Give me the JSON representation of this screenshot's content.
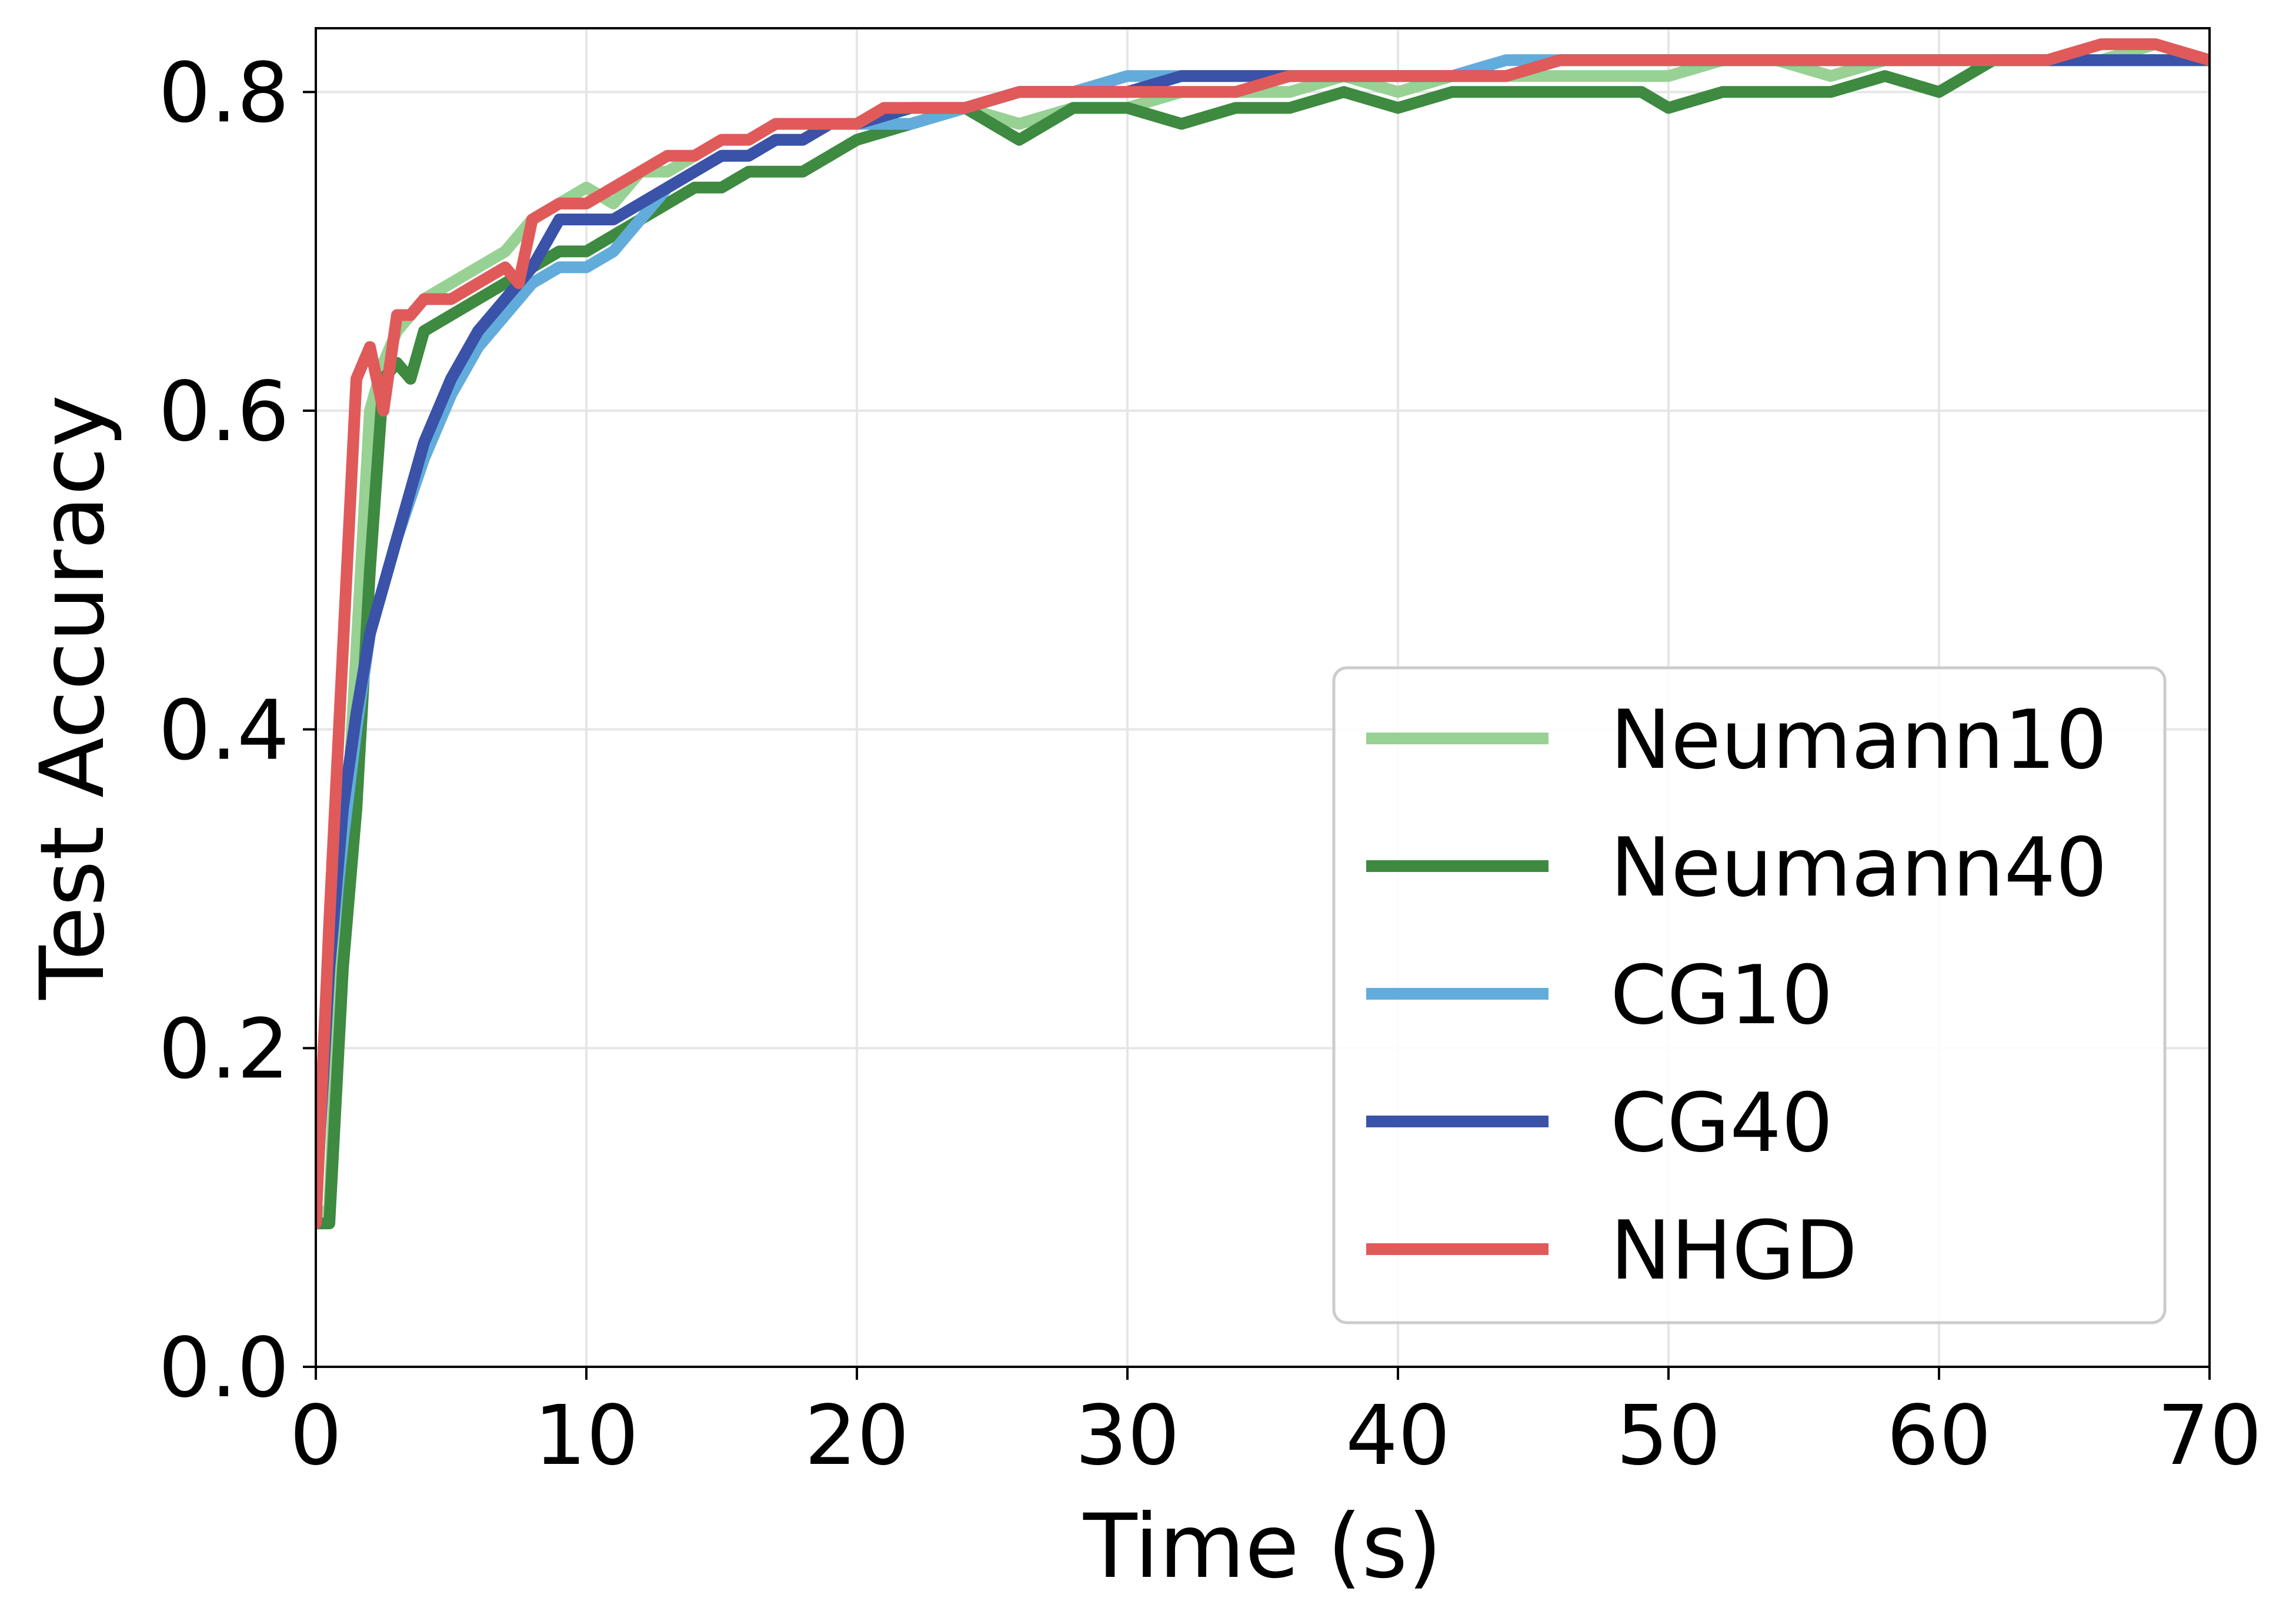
{
  "chart_data": {
    "type": "line",
    "xlabel": "Time (s)",
    "ylabel": "Test Accuracy",
    "xlim": [
      0,
      70
    ],
    "ylim": [
      0,
      0.84
    ],
    "xticks": [
      0,
      10,
      20,
      30,
      40,
      50,
      60,
      70
    ],
    "xtick_labels": [
      "0",
      "10",
      "20",
      "30",
      "40",
      "50",
      "60",
      "70"
    ],
    "yticks": [
      0,
      0.2,
      0.4,
      0.6,
      0.8
    ],
    "ytick_labels": [
      "0.0",
      "0.2",
      "0.4",
      "0.6",
      "0.8"
    ],
    "grid": true,
    "legend_position": "lower-right",
    "series": [
      {
        "name": "Neumann10",
        "color": "#98d194",
        "x": [
          0,
          0.5,
          1,
          1.5,
          2,
          2.5,
          3,
          4,
          5,
          6,
          7,
          8,
          9,
          10,
          11,
          12,
          13,
          14,
          15,
          16,
          17,
          18,
          19,
          20,
          22,
          24,
          26,
          28,
          30,
          32,
          34,
          36,
          38,
          40,
          42,
          44,
          46,
          48,
          50,
          52,
          54,
          56,
          58,
          60,
          62,
          64,
          66,
          68,
          70
        ],
        "y": [
          0.09,
          0.1,
          0.3,
          0.45,
          0.6,
          0.63,
          0.65,
          0.67,
          0.68,
          0.69,
          0.7,
          0.72,
          0.73,
          0.74,
          0.73,
          0.75,
          0.75,
          0.76,
          0.77,
          0.77,
          0.78,
          0.78,
          0.78,
          0.78,
          0.78,
          0.79,
          0.78,
          0.79,
          0.79,
          0.8,
          0.8,
          0.8,
          0.81,
          0.8,
          0.81,
          0.81,
          0.81,
          0.81,
          0.81,
          0.82,
          0.82,
          0.81,
          0.82,
          0.82,
          0.82,
          0.82,
          0.82,
          0.83,
          0.82
        ]
      },
      {
        "name": "Neumann40",
        "color": "#3d8a40",
        "x": [
          0,
          0.5,
          1,
          1.5,
          2,
          2.5,
          3,
          3.5,
          4,
          5,
          6,
          7,
          8,
          9,
          10,
          11,
          12,
          13,
          14,
          15,
          16,
          17,
          18,
          19,
          20,
          22,
          24,
          25,
          26,
          27,
          28,
          30,
          32,
          34,
          36,
          38,
          40,
          42,
          44,
          46,
          48,
          49,
          50,
          52,
          54,
          56,
          58,
          60,
          62,
          64,
          66,
          68,
          70
        ],
        "y": [
          0.09,
          0.09,
          0.25,
          0.35,
          0.5,
          0.62,
          0.63,
          0.62,
          0.65,
          0.66,
          0.67,
          0.68,
          0.69,
          0.7,
          0.7,
          0.71,
          0.72,
          0.73,
          0.74,
          0.74,
          0.75,
          0.75,
          0.75,
          0.76,
          0.77,
          0.78,
          0.79,
          0.78,
          0.77,
          0.78,
          0.79,
          0.79,
          0.78,
          0.79,
          0.79,
          0.8,
          0.79,
          0.8,
          0.8,
          0.8,
          0.8,
          0.8,
          0.79,
          0.8,
          0.8,
          0.8,
          0.81,
          0.8,
          0.82,
          0.82,
          0.82,
          0.82,
          0.82
        ]
      },
      {
        "name": "CG10",
        "color": "#62acdc",
        "x": [
          0,
          0.5,
          1,
          1.5,
          2,
          3,
          4,
          5,
          6,
          7,
          8,
          9,
          10,
          11,
          12,
          13,
          14,
          15,
          16,
          17,
          18,
          19,
          20,
          22,
          24,
          26,
          28,
          30,
          32,
          34,
          36,
          38,
          40,
          42,
          44,
          46,
          48,
          50,
          52,
          54,
          56,
          58,
          60,
          62,
          64,
          66,
          68,
          70
        ],
        "y": [
          0.1,
          0.25,
          0.33,
          0.4,
          0.46,
          0.52,
          0.57,
          0.61,
          0.64,
          0.66,
          0.68,
          0.69,
          0.69,
          0.7,
          0.72,
          0.74,
          0.75,
          0.76,
          0.76,
          0.77,
          0.77,
          0.78,
          0.78,
          0.78,
          0.79,
          0.8,
          0.8,
          0.81,
          0.81,
          0.81,
          0.81,
          0.81,
          0.81,
          0.81,
          0.82,
          0.82,
          0.82,
          0.82,
          0.82,
          0.82,
          0.82,
          0.82,
          0.82,
          0.82,
          0.82,
          0.82,
          0.82,
          0.82
        ]
      },
      {
        "name": "CG40",
        "color": "#3a52a8",
        "x": [
          0,
          0.5,
          1,
          1.5,
          2,
          3,
          4,
          5,
          6,
          7,
          8,
          9,
          10,
          11,
          12,
          13,
          14,
          15,
          16,
          17,
          18,
          19,
          20,
          22,
          24,
          26,
          28,
          30,
          32,
          34,
          36,
          38,
          40,
          42,
          44,
          46,
          48,
          50,
          52,
          54,
          56,
          58,
          60,
          62,
          64,
          66,
          68,
          70
        ],
        "y": [
          0.1,
          0.25,
          0.35,
          0.41,
          0.46,
          0.52,
          0.58,
          0.62,
          0.65,
          0.67,
          0.69,
          0.72,
          0.72,
          0.72,
          0.73,
          0.74,
          0.75,
          0.76,
          0.76,
          0.77,
          0.77,
          0.78,
          0.78,
          0.79,
          0.79,
          0.8,
          0.8,
          0.8,
          0.81,
          0.81,
          0.81,
          0.81,
          0.81,
          0.81,
          0.81,
          0.82,
          0.82,
          0.82,
          0.82,
          0.82,
          0.82,
          0.82,
          0.82,
          0.82,
          0.82,
          0.82,
          0.82,
          0.82
        ]
      },
      {
        "name": "NHGD",
        "color": "#e05a5a",
        "x": [
          0,
          0.5,
          1,
          1.5,
          2,
          2.5,
          3,
          3.5,
          4,
          5,
          6,
          7,
          7.5,
          8,
          9,
          10,
          11,
          12,
          13,
          14,
          15,
          16,
          17,
          18,
          19,
          20,
          21,
          22,
          24,
          26,
          28,
          30,
          32,
          34,
          36,
          38,
          40,
          42,
          44,
          46,
          48,
          50,
          52,
          54,
          56,
          58,
          60,
          62,
          64,
          66,
          68,
          70
        ],
        "y": [
          0.09,
          0.28,
          0.45,
          0.62,
          0.64,
          0.6,
          0.66,
          0.66,
          0.67,
          0.67,
          0.68,
          0.69,
          0.68,
          0.72,
          0.73,
          0.73,
          0.74,
          0.75,
          0.76,
          0.76,
          0.77,
          0.77,
          0.78,
          0.78,
          0.78,
          0.78,
          0.79,
          0.79,
          0.79,
          0.8,
          0.8,
          0.8,
          0.8,
          0.8,
          0.81,
          0.81,
          0.81,
          0.81,
          0.81,
          0.82,
          0.82,
          0.82,
          0.82,
          0.82,
          0.82,
          0.82,
          0.82,
          0.82,
          0.82,
          0.83,
          0.83,
          0.82
        ]
      }
    ]
  }
}
